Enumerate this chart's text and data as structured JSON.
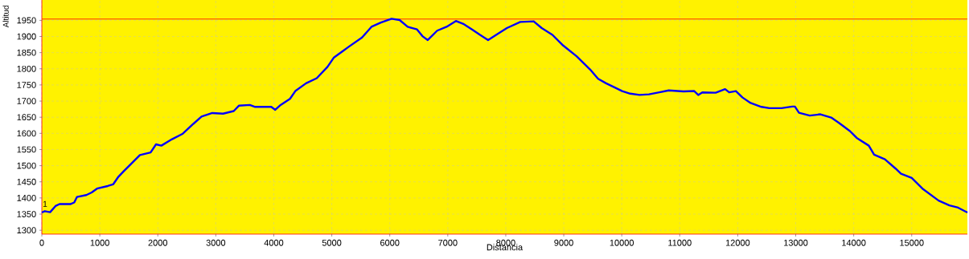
{
  "chart_data": {
    "type": "line",
    "xlabel": "Distancia",
    "ylabel": "Altitud",
    "x": [
      0,
      50,
      143,
      236,
      305,
      490,
      559,
      605,
      767,
      860,
      952,
      1137,
      1229,
      1322,
      1414,
      1553,
      1691,
      1876,
      1969,
      2061,
      2246,
      2431,
      2616,
      2754,
      2939,
      3124,
      3309,
      3401,
      3586,
      3678,
      3956,
      4025,
      4117,
      4279,
      4371,
      4556,
      4741,
      4926,
      5037,
      5199,
      5291,
      5522,
      5684,
      5846,
      6031,
      6170,
      6308,
      6470,
      6563,
      6655,
      6817,
      6979,
      7140,
      7279,
      7418,
      7557,
      7695,
      7834,
      8019,
      8250,
      8481,
      8620,
      8805,
      8990,
      9221,
      9453,
      9592,
      9730,
      10007,
      10146,
      10307,
      10469,
      10648,
      10810,
      11065,
      11250,
      11319,
      11389,
      11620,
      11782,
      11852,
      11968,
      12083,
      12222,
      12408,
      12546,
      12755,
      12940,
      12986,
      13056,
      13241,
      13426,
      13611,
      13750,
      13935,
      14051,
      14260,
      14352,
      14537,
      14722,
      14815,
      15000,
      15185,
      15463,
      15649,
      15787,
      15960
    ],
    "series": [
      {
        "color": "#0000ff",
        "values": [
          1355,
          1359,
          1356,
          1375,
          1381,
          1381,
          1386,
          1403,
          1409,
          1417,
          1429,
          1437,
          1442,
          1466,
          1483,
          1508,
          1533,
          1541,
          1566,
          1562,
          1582,
          1599,
          1630,
          1652,
          1663,
          1661,
          1669,
          1686,
          1688,
          1682,
          1682,
          1673,
          1688,
          1707,
          1731,
          1755,
          1771,
          1806,
          1835,
          1856,
          1868,
          1897,
          1930,
          1943,
          1955,
          1951,
          1930,
          1922,
          1901,
          1889,
          1918,
          1930,
          1948,
          1938,
          1922,
          1905,
          1889,
          1905,
          1926,
          1945,
          1947,
          1926,
          1905,
          1872,
          1839,
          1798,
          1769,
          1755,
          1731,
          1723,
          1719,
          1721,
          1727,
          1733,
          1730,
          1731,
          1719,
          1727,
          1726,
          1737,
          1727,
          1731,
          1711,
          1694,
          1682,
          1678,
          1678,
          1683,
          1683,
          1664,
          1655,
          1659,
          1649,
          1632,
          1607,
          1586,
          1562,
          1534,
          1520,
          1491,
          1475,
          1462,
          1429,
          1392,
          1377,
          1371,
          1355
        ]
      }
    ],
    "xlim": [
      0,
      15960
    ],
    "ylim": [
      1288,
      2013
    ],
    "xticks": [
      0,
      1000,
      2000,
      3000,
      4000,
      5000,
      6000,
      7000,
      8000,
      9000,
      10000,
      11000,
      12000,
      13000,
      14000,
      15000
    ],
    "yticks": [
      1300,
      1350,
      1400,
      1450,
      1500,
      1550,
      1600,
      1650,
      1700,
      1750,
      1800,
      1850,
      1900,
      1950
    ],
    "grid": true,
    "ref_lines": [
      {
        "axis": "y",
        "value": 1954,
        "color": "#ff0000"
      }
    ],
    "annotations": [
      {
        "text": "1",
        "x": 0,
        "y": 1370
      }
    ]
  }
}
